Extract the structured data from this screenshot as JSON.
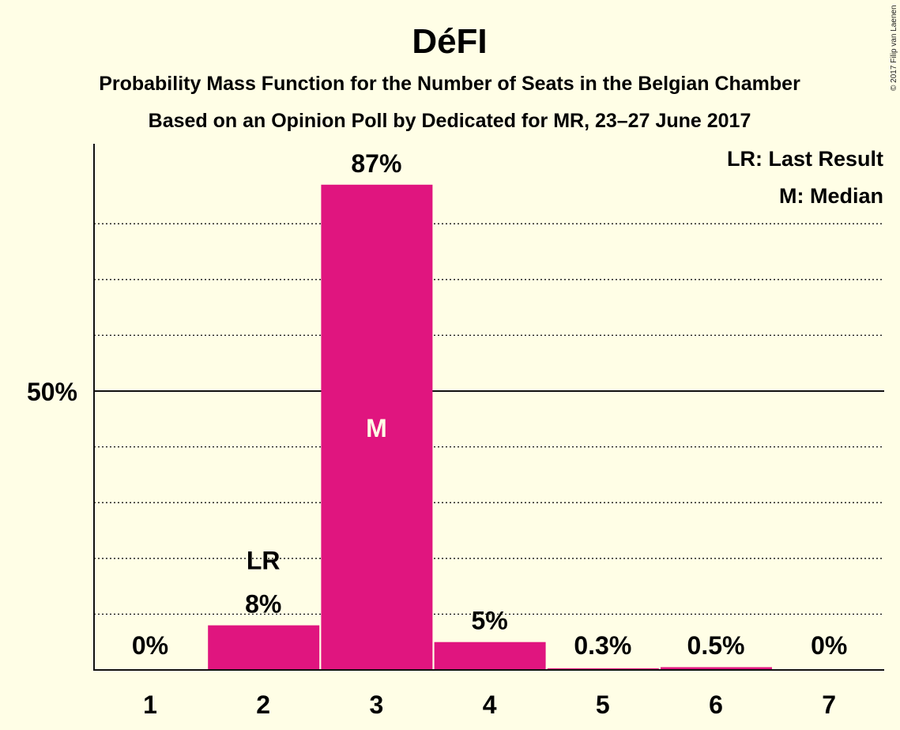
{
  "chart_data": {
    "type": "bar",
    "title": "DéFI",
    "subtitle_lines": [
      "Probability Mass Function for the Number of Seats in the Belgian Chamber",
      "Based on an Opinion Poll by Dedicated for MR, 23–27 June 2017"
    ],
    "copyright": "© 2017 Filip van Laenen",
    "categories": [
      "1",
      "2",
      "3",
      "4",
      "5",
      "6",
      "7"
    ],
    "values": [
      0,
      8,
      87,
      5,
      0.3,
      0.5,
      0
    ],
    "value_labels": [
      "0%",
      "8%",
      "87%",
      "5%",
      "0.3%",
      "0.5%",
      "0%"
    ],
    "ylim": [
      0,
      95
    ],
    "ytick_labels": [
      {
        "value": 50,
        "label": "50%"
      }
    ],
    "gridlines": [
      10,
      20,
      30,
      40,
      60,
      70,
      80
    ],
    "last_result": {
      "category": "2",
      "label": "LR"
    },
    "median": {
      "category": "3",
      "label": "M"
    },
    "legend": [
      "LR: Last Result",
      "M: Median"
    ],
    "legend_position": "top-right",
    "bar_color": "#E0157F"
  }
}
